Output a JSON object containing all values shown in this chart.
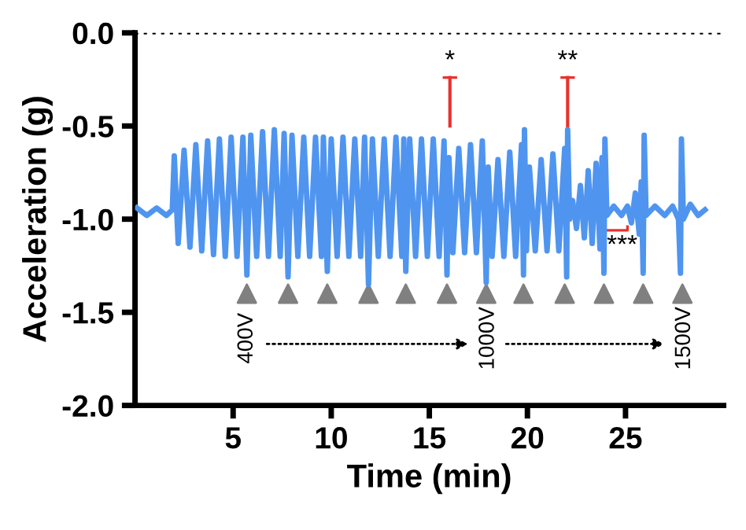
{
  "chart_data": {
    "type": "line",
    "xlabel": "Time (min)",
    "ylabel": "Acceleration (g)",
    "xlim": [
      0,
      30
    ],
    "xticks": [
      5,
      10,
      15,
      20,
      25
    ],
    "ylim": [
      -2.0,
      0.0
    ],
    "yticks": [
      {
        "value": 0,
        "label": "0.0"
      },
      {
        "value": -0.5,
        "label": "-0.5"
      },
      {
        "value": -1,
        "label": "-1.0"
      },
      {
        "value": -1.5,
        "label": "-1.5"
      },
      {
        "value": -2,
        "label": "-2.0"
      }
    ],
    "grid": false,
    "marker": "none",
    "line_style": "solid",
    "series": [
      {
        "color": "#4f95f0",
        "x": [
          0.1,
          0.6,
          1.1,
          1.6,
          1.9,
          2.0,
          2.2,
          2.5,
          2.8,
          3.1,
          3.4,
          3.7,
          4.0,
          4.3,
          4.6,
          4.9,
          5.2,
          5.5,
          5.7,
          5.9,
          6.2,
          6.5,
          6.8,
          7.1,
          7.4,
          7.6,
          7.8,
          8.0,
          8.3,
          8.6,
          8.9,
          9.2,
          9.5,
          9.6,
          9.8,
          10.0,
          10.3,
          10.6,
          10.9,
          11.2,
          11.5,
          11.7,
          11.9,
          12.1,
          12.4,
          12.7,
          13.0,
          13.3,
          13.6,
          13.7,
          13.8,
          14.0,
          14.3,
          14.6,
          14.9,
          15.2,
          15.5,
          15.75,
          15.9,
          16.0,
          16.2,
          16.5,
          16.8,
          17.1,
          17.4,
          17.7,
          17.9,
          18.0,
          18.2,
          18.5,
          18.8,
          19.1,
          19.4,
          19.7,
          19.8,
          19.85,
          19.95,
          20.1,
          20.4,
          20.7,
          21.0,
          21.3,
          21.6,
          21.9,
          22.0,
          22.05,
          22.15,
          22.3,
          22.5,
          22.7,
          22.9,
          23.1,
          23.3,
          23.5,
          23.7,
          23.8,
          23.9,
          23.95,
          24.05,
          24.4,
          24.8,
          25.1,
          25.3,
          25.5,
          25.7,
          25.8,
          25.9,
          25.95,
          26.05,
          26.5,
          27.0,
          27.4,
          27.7,
          27.8,
          27.85,
          27.95,
          28.3,
          28.7,
          29.05
        ],
        "values": [
          -0.94,
          -0.98,
          -0.94,
          -0.98,
          -0.95,
          -0.66,
          -1.13,
          -0.63,
          -1.15,
          -0.6,
          -1.17,
          -0.58,
          -1.19,
          -0.57,
          -1.2,
          -0.56,
          -1.2,
          -0.56,
          -1.3,
          -0.55,
          -1.2,
          -0.53,
          -1.2,
          -0.52,
          -1.2,
          -0.54,
          -1.31,
          -0.55,
          -1.2,
          -0.56,
          -1.2,
          -0.56,
          -1.2,
          -0.56,
          -1.28,
          -0.57,
          -1.2,
          -0.56,
          -1.2,
          -0.57,
          -1.2,
          -0.56,
          -1.35,
          -0.57,
          -1.2,
          -0.57,
          -1.2,
          -0.56,
          -1.2,
          -0.57,
          -1.28,
          -0.57,
          -1.2,
          -0.57,
          -1.2,
          -0.57,
          -1.2,
          -0.58,
          -1.3,
          -0.67,
          -1.18,
          -0.62,
          -1.18,
          -0.6,
          -1.18,
          -0.58,
          -1.34,
          -0.72,
          -1.2,
          -0.68,
          -1.2,
          -0.64,
          -1.2,
          -0.6,
          -1.3,
          -0.52,
          -1.17,
          -0.72,
          -1.17,
          -0.68,
          -1.17,
          -0.65,
          -1.17,
          -0.62,
          -1.31,
          -0.52,
          -1.0,
          -0.9,
          -1.05,
          -0.82,
          -1.1,
          -0.74,
          -1.13,
          -0.7,
          -1.16,
          -0.67,
          -1.29,
          -0.57,
          -0.98,
          -0.93,
          -0.98,
          -0.93,
          -1.02,
          -0.86,
          -1.08,
          -0.8,
          -1.29,
          -0.55,
          -0.98,
          -0.93,
          -0.98,
          -0.93,
          -1.0,
          -1.29,
          -0.57,
          -1.0,
          -0.92,
          -0.98,
          -0.95
        ]
      },
      {
        "type": "scatter",
        "color": "#808080",
        "marker": "triangle",
        "x": [
          5.7,
          7.8,
          9.8,
          11.9,
          13.8,
          15.9,
          17.9,
          19.8,
          21.9,
          23.9,
          25.9,
          27.9
        ],
        "values": [
          -1.4,
          -1.4,
          -1.4,
          -1.4,
          -1.4,
          -1.4,
          -1.4,
          -1.4,
          -1.4,
          -1.4,
          -1.4,
          -1.4
        ]
      }
    ],
    "ref_lines": [
      {
        "axis": "y",
        "value": 0,
        "color": "#000000",
        "line_style": "dotted"
      }
    ],
    "annotations": [
      "*",
      "**",
      "***",
      "400V",
      "1000V",
      "1500V"
    ]
  }
}
